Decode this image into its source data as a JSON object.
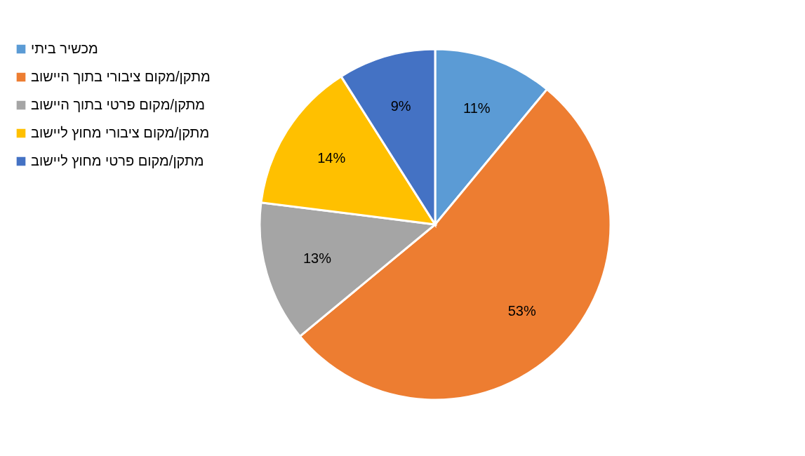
{
  "chart_data": {
    "type": "pie",
    "categories": [
      "מכשיר ביתי",
      "מתקן/מקום ציבורי בתוך היישוב",
      "מתקן/מקום פרטי בתוך היישוב",
      "מתקן/מקום ציבורי מחוץ ליישוב",
      "מתקן/מקום פרטי מחוץ ליישוב"
    ],
    "values": [
      11,
      53,
      13,
      14,
      9
    ],
    "colors": [
      "#5b9bd5",
      "#ed7d31",
      "#a5a5a5",
      "#ffc000",
      "#4472c4"
    ],
    "value_labels": [
      "11%",
      "53%",
      "13%",
      "14%",
      "9%"
    ],
    "legend": "left"
  }
}
